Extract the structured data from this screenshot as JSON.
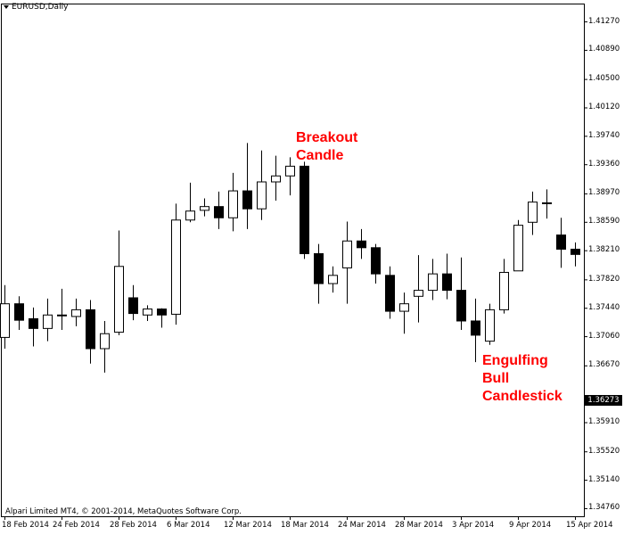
{
  "window": {
    "symbol_label": "EURUSD,Daily"
  },
  "footer": {
    "copyright": "Alpari Limited MT4, © 2001-2014, MetaQuotes Software Corp."
  },
  "annotations": [
    {
      "text": "Breakout\nCandle",
      "color": "#ff0000"
    },
    {
      "text": "Engulfing\nBull\nCandlestick",
      "color": "#ff0000"
    }
  ],
  "current_price_tag": "1.36273",
  "chart_data": {
    "type": "candlestick",
    "symbol": "EURUSD",
    "timeframe": "Daily",
    "ylim": [
      1.3467,
      1.4136
    ],
    "y_ticks": [
      "1.41270",
      "1.40890",
      "1.40500",
      "1.40120",
      "1.39740",
      "1.39360",
      "1.38970",
      "1.38590",
      "1.38210",
      "1.37820",
      "1.37440",
      "1.37060",
      "1.36670",
      "1.35910",
      "1.35520",
      "1.35140",
      "1.34760"
    ],
    "x_ticks": [
      "18 Feb 2014",
      "24 Feb 2014",
      "28 Feb 2014",
      "6 Mar 2014",
      "12 Mar 2014",
      "18 Mar 2014",
      "24 Mar 2014",
      "28 Mar 2014",
      "3 Apr 2014",
      "9 Apr 2014",
      "15 Apr 2014"
    ],
    "candles": [
      {
        "o": 1.3705,
        "h": 1.3775,
        "l": 1.369,
        "c": 1.375
      },
      {
        "o": 1.375,
        "h": 1.376,
        "l": 1.3715,
        "c": 1.3728
      },
      {
        "o": 1.373,
        "h": 1.3745,
        "l": 1.3693,
        "c": 1.3717
      },
      {
        "o": 1.3717,
        "h": 1.3757,
        "l": 1.37,
        "c": 1.3735
      },
      {
        "o": 1.3735,
        "h": 1.377,
        "l": 1.3715,
        "c": 1.3735
      },
      {
        "o": 1.3733,
        "h": 1.3757,
        "l": 1.372,
        "c": 1.3742
      },
      {
        "o": 1.3742,
        "h": 1.3755,
        "l": 1.367,
        "c": 1.369
      },
      {
        "o": 1.369,
        "h": 1.3727,
        "l": 1.3658,
        "c": 1.371
      },
      {
        "o": 1.3712,
        "h": 1.3848,
        "l": 1.3708,
        "c": 1.38
      },
      {
        "o": 1.3758,
        "h": 1.3775,
        "l": 1.3728,
        "c": 1.3737
      },
      {
        "o": 1.3735,
        "h": 1.3748,
        "l": 1.3727,
        "c": 1.3743
      },
      {
        "o": 1.3743,
        "h": 1.3744,
        "l": 1.3718,
        "c": 1.3735
      },
      {
        "o": 1.3736,
        "h": 1.3884,
        "l": 1.3722,
        "c": 1.3862
      },
      {
        "o": 1.3862,
        "h": 1.3912,
        "l": 1.3859,
        "c": 1.3874
      },
      {
        "o": 1.3875,
        "h": 1.3891,
        "l": 1.3867,
        "c": 1.388
      },
      {
        "o": 1.388,
        "h": 1.39,
        "l": 1.385,
        "c": 1.3865
      },
      {
        "o": 1.3865,
        "h": 1.3925,
        "l": 1.3847,
        "c": 1.3901
      },
      {
        "o": 1.3901,
        "h": 1.3965,
        "l": 1.385,
        "c": 1.3877
      },
      {
        "o": 1.3877,
        "h": 1.3955,
        "l": 1.3862,
        "c": 1.3913
      },
      {
        "o": 1.3913,
        "h": 1.3948,
        "l": 1.3888,
        "c": 1.3921
      },
      {
        "o": 1.3921,
        "h": 1.3946,
        "l": 1.3895,
        "c": 1.3934
      },
      {
        "o": 1.3934,
        "h": 1.394,
        "l": 1.381,
        "c": 1.3817
      },
      {
        "o": 1.3817,
        "h": 1.383,
        "l": 1.375,
        "c": 1.3777
      },
      {
        "o": 1.3777,
        "h": 1.38,
        "l": 1.3765,
        "c": 1.3788
      },
      {
        "o": 1.3798,
        "h": 1.386,
        "l": 1.375,
        "c": 1.3834
      },
      {
        "o": 1.3834,
        "h": 1.385,
        "l": 1.381,
        "c": 1.3825
      },
      {
        "o": 1.3825,
        "h": 1.383,
        "l": 1.3777,
        "c": 1.379
      },
      {
        "o": 1.3788,
        "h": 1.38,
        "l": 1.373,
        "c": 1.374
      },
      {
        "o": 1.374,
        "h": 1.3765,
        "l": 1.371,
        "c": 1.375
      },
      {
        "o": 1.376,
        "h": 1.3815,
        "l": 1.3725,
        "c": 1.3768
      },
      {
        "o": 1.3768,
        "h": 1.381,
        "l": 1.3755,
        "c": 1.379
      },
      {
        "o": 1.379,
        "h": 1.3817,
        "l": 1.3756,
        "c": 1.3768
      },
      {
        "o": 1.3768,
        "h": 1.3812,
        "l": 1.3715,
        "c": 1.3727
      },
      {
        "o": 1.3727,
        "h": 1.3757,
        "l": 1.3672,
        "c": 1.3708
      },
      {
        "o": 1.37,
        "h": 1.375,
        "l": 1.3695,
        "c": 1.3742
      },
      {
        "o": 1.3742,
        "h": 1.381,
        "l": 1.3737,
        "c": 1.3792
      },
      {
        "o": 1.3794,
        "h": 1.3862,
        "l": 1.3794,
        "c": 1.3855
      },
      {
        "o": 1.3859,
        "h": 1.39,
        "l": 1.3842,
        "c": 1.3886
      },
      {
        "o": 1.3885,
        "h": 1.3903,
        "l": 1.3864,
        "c": 1.3885
      },
      {
        "o": 1.3842,
        "h": 1.3865,
        "l": 1.3798,
        "c": 1.3823
      },
      {
        "o": 1.3823,
        "h": 1.3832,
        "l": 1.38,
        "c": 1.3816
      }
    ]
  }
}
